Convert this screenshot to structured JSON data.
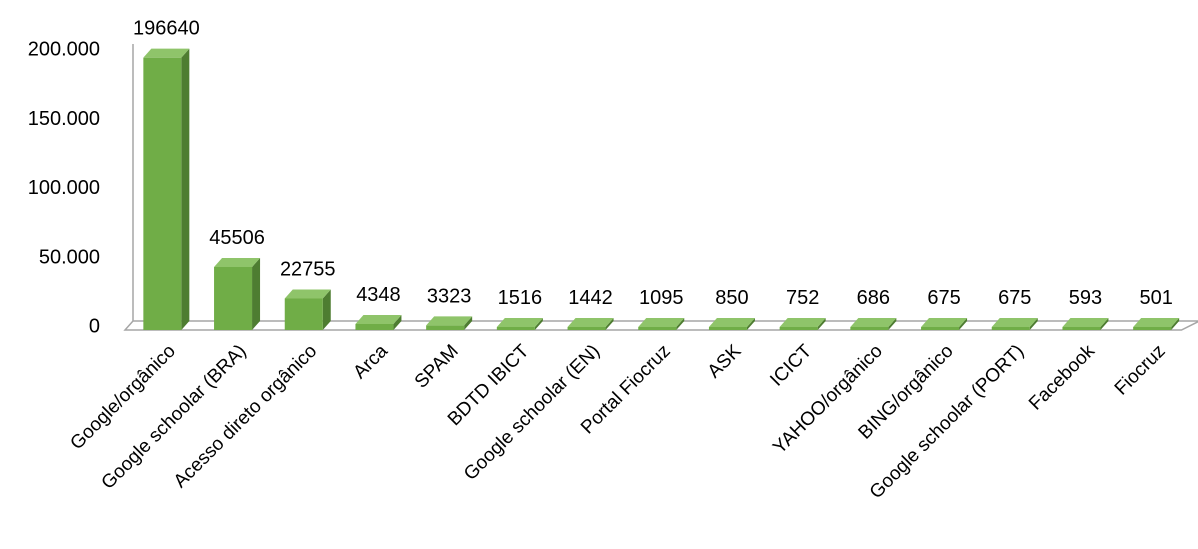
{
  "chart_data": {
    "type": "bar",
    "style": "3d-column",
    "title": "",
    "xlabel": "",
    "ylabel": "",
    "ylim": [
      0,
      200000
    ],
    "yticks": [
      {
        "value": 0,
        "label": "0"
      },
      {
        "value": 50000,
        "label": "50.000"
      },
      {
        "value": 100000,
        "label": "100.000"
      },
      {
        "value": 150000,
        "label": "150.000"
      },
      {
        "value": 200000,
        "label": "200.000"
      }
    ],
    "categories": [
      "Google/orgânico",
      "Google schoolar (BRA)",
      "Acesso direto orgânico",
      "Arca",
      "SPAM",
      "BDTD IBICT",
      "Google schoolar (EN)",
      "Portal Fiocruz",
      "ASK",
      "ICICT",
      "YAHOO/orgânico",
      "BING/orgânico",
      "Google schoolar (PORT)",
      "Facebook",
      "Fiocruz"
    ],
    "values": [
      196640,
      45506,
      22755,
      4348,
      3323,
      1516,
      1442,
      1095,
      850,
      752,
      686,
      675,
      675,
      593,
      501
    ],
    "data_labels": [
      "196640",
      "45506",
      "22755",
      "4348",
      "3323",
      "1516",
      "1442",
      "1095",
      "850",
      "752",
      "686",
      "675",
      "675",
      "593",
      "501"
    ],
    "grid": false,
    "legend": "none",
    "colors": {
      "bar_front": "#70ad47",
      "bar_side": "#4e7d31",
      "bar_top": "#8fc46a",
      "axis": "#a6a6a6"
    }
  }
}
